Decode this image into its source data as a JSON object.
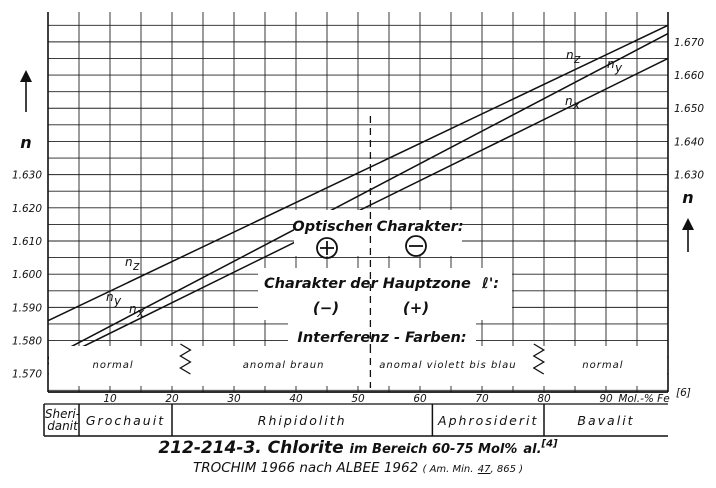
{
  "chart_data": {
    "type": "line",
    "xlabel": "Mol.-% Fe",
    "xlabel_ref": "[6]",
    "ylabel": "n",
    "xlim": [
      0,
      100
    ],
    "x_ticks": [
      10,
      20,
      30,
      40,
      50,
      60,
      70,
      80,
      90
    ],
    "y_ticks_left": [
      "1.570",
      "1.580",
      "1.590",
      "1.600",
      "1.610",
      "1.620",
      "1.630"
    ],
    "y_ticks_right": [
      "1.630",
      "1.640",
      "1.650",
      "1.660",
      "1.670"
    ],
    "series": [
      {
        "name": "n",
        "sub": "z",
        "x": [
          0,
          100
        ],
        "y": [
          1.586,
          1.675
        ]
      },
      {
        "name": "n",
        "sub": "y",
        "x": [
          0,
          100
        ],
        "y": [
          1.5745,
          1.6725
        ]
      },
      {
        "name": "n",
        "sub": "x",
        "x": [
          0,
          100
        ],
        "y": [
          1.573,
          1.665
        ]
      }
    ],
    "crossover_x": 52,
    "annotations": {
      "optical_label": "Optischer Charakter:",
      "optical_left": "+",
      "optical_right": "−",
      "zone_label": "Charakter der Hauptzone",
      "zone_symbol": "ℓ':",
      "zone_left": "(−)",
      "zone_right": "(+)",
      "interference_label": "Interferenz - Farben:"
    },
    "color_zones": [
      "normal",
      "anomal braun",
      "anomal violett bis blau",
      "normal"
    ],
    "minerals": [
      {
        "name": "Sheri-",
        "name2": "danit",
        "x": 2.5
      },
      {
        "name": "Grochauit",
        "x": 12.5
      },
      {
        "name": "Rhipidolith",
        "x": 46
      },
      {
        "name": "Aphrosiderit",
        "x": 72.5
      },
      {
        "name": "Bavalit",
        "x": 90
      }
    ]
  },
  "caption": {
    "number": "212-214-3.",
    "title": "Chlorite",
    "range_text": "im Bereich 60-75 Mol%",
    "suffix": "al.",
    "ref": "[4]",
    "source": "TROCHIM 1966 nach ALBEE 1962",
    "journal": "( Am. Min.",
    "volume": "47",
    "pages": ", 865 )"
  }
}
